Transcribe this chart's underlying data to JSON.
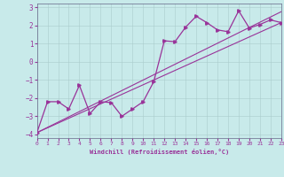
{
  "xlabel": "Windchill (Refroidissement éolien,°C)",
  "xlim": [
    0,
    23
  ],
  "ylim": [
    -4.2,
    3.2
  ],
  "yticks": [
    -4,
    -3,
    -2,
    -1,
    0,
    1,
    2,
    3
  ],
  "xticks": [
    0,
    1,
    2,
    3,
    4,
    5,
    6,
    7,
    8,
    9,
    10,
    11,
    12,
    13,
    14,
    15,
    16,
    17,
    18,
    19,
    20,
    21,
    22,
    23
  ],
  "bg_color": "#c8eaea",
  "line_color": "#993399",
  "line1_x": [
    0,
    1,
    2,
    3,
    4,
    5,
    6,
    7,
    8,
    9,
    10,
    11,
    12,
    13,
    14,
    15,
    16,
    17,
    18,
    19,
    20,
    21,
    22,
    23
  ],
  "line1_y": [
    -3.9,
    -2.2,
    -2.2,
    -2.6,
    -1.3,
    -2.85,
    -2.2,
    -2.25,
    -3.0,
    -2.6,
    -2.2,
    -1.1,
    1.15,
    1.1,
    1.9,
    2.5,
    2.15,
    1.75,
    1.65,
    2.8,
    1.85,
    2.05,
    2.3,
    2.15
  ],
  "line2_x": [
    0,
    23
  ],
  "line2_y": [
    -3.9,
    2.15
  ],
  "line3_x": [
    0,
    23
  ],
  "line3_y": [
    -3.9,
    2.75
  ]
}
